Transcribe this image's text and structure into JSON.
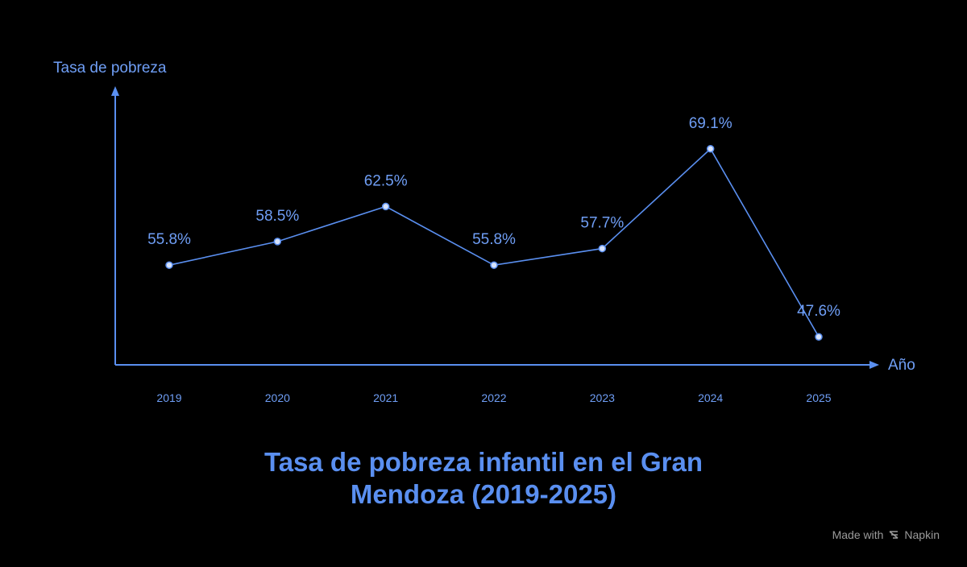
{
  "chart_data": {
    "type": "line",
    "title_line1": "Tasa de pobreza infantil en el Gran",
    "title_line2": "Mendoza (2019-2025)",
    "ylabel": "Tasa de pobreza",
    "xlabel": "Año",
    "categories": [
      "2019",
      "2020",
      "2021",
      "2022",
      "2023",
      "2024",
      "2025"
    ],
    "values": [
      55.8,
      58.5,
      62.5,
      55.8,
      57.7,
      69.1,
      47.6
    ],
    "data_labels": [
      "55.8%",
      "58.5%",
      "62.5%",
      "55.8%",
      "57.7%",
      "69.1%",
      "47.6%"
    ],
    "ylim": [
      44.4,
      75.8
    ],
    "grid": false,
    "legend": "none",
    "colors": {
      "background": "#000000",
      "line": "#5a8ff0",
      "text": "#6f9ef5",
      "title": "#5a8ff0",
      "marker_fill": "#d6e2fb"
    }
  },
  "footer": {
    "made_with": "Made with",
    "brand": "Napkin",
    "icon": "napkin-logo-icon"
  }
}
